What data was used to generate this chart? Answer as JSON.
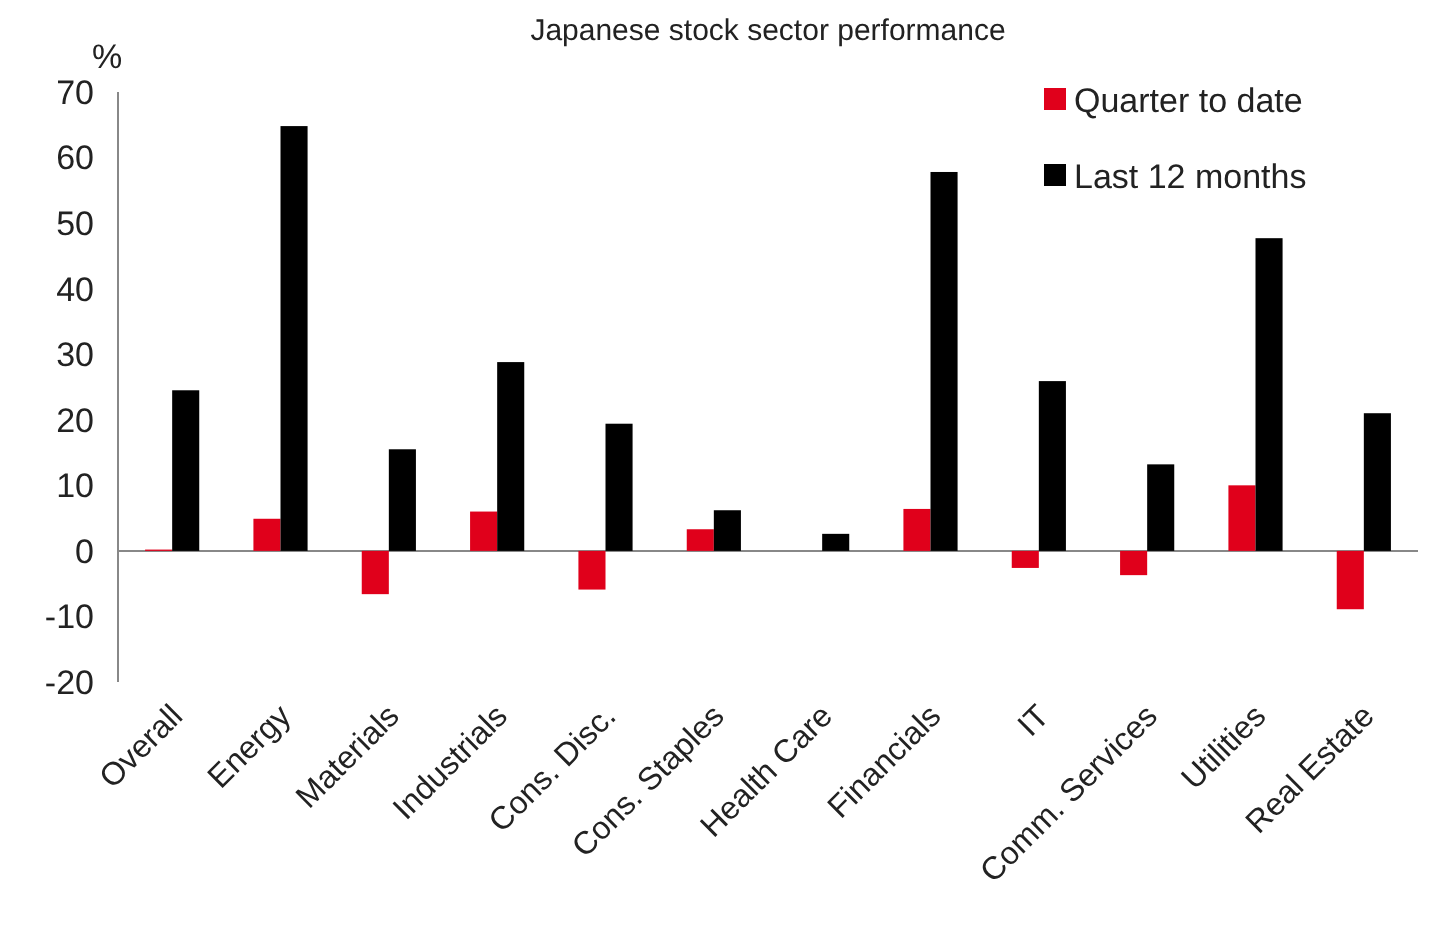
{
  "chart_data": {
    "type": "bar",
    "title": "Japanese stock sector performance",
    "ylabel": "%",
    "categories": [
      "Overall",
      "Energy",
      "Materials",
      "Industrials",
      "Cons. Disc.",
      "Cons. Staples",
      "Health Care",
      "Financials",
      "IT",
      "Comm. Services",
      "Utilities",
      "Real Estate"
    ],
    "series": [
      {
        "name": "Quarter to date",
        "color": "#e0001b",
        "values": [
          0.2,
          4.9,
          -6.6,
          6.0,
          -5.9,
          3.3,
          0,
          6.4,
          -2.6,
          -3.7,
          10.0,
          -8.9
        ]
      },
      {
        "name": "Last 12 months",
        "color": "#000000",
        "values": [
          24.5,
          64.8,
          15.5,
          28.8,
          19.4,
          6.2,
          2.6,
          57.8,
          25.9,
          13.2,
          47.7,
          21.0
        ]
      }
    ],
    "ylim": [
      -20,
      70
    ],
    "yticks": [
      -20,
      -10,
      0,
      10,
      20,
      30,
      40,
      50,
      60,
      70
    ],
    "legend": "top right"
  }
}
